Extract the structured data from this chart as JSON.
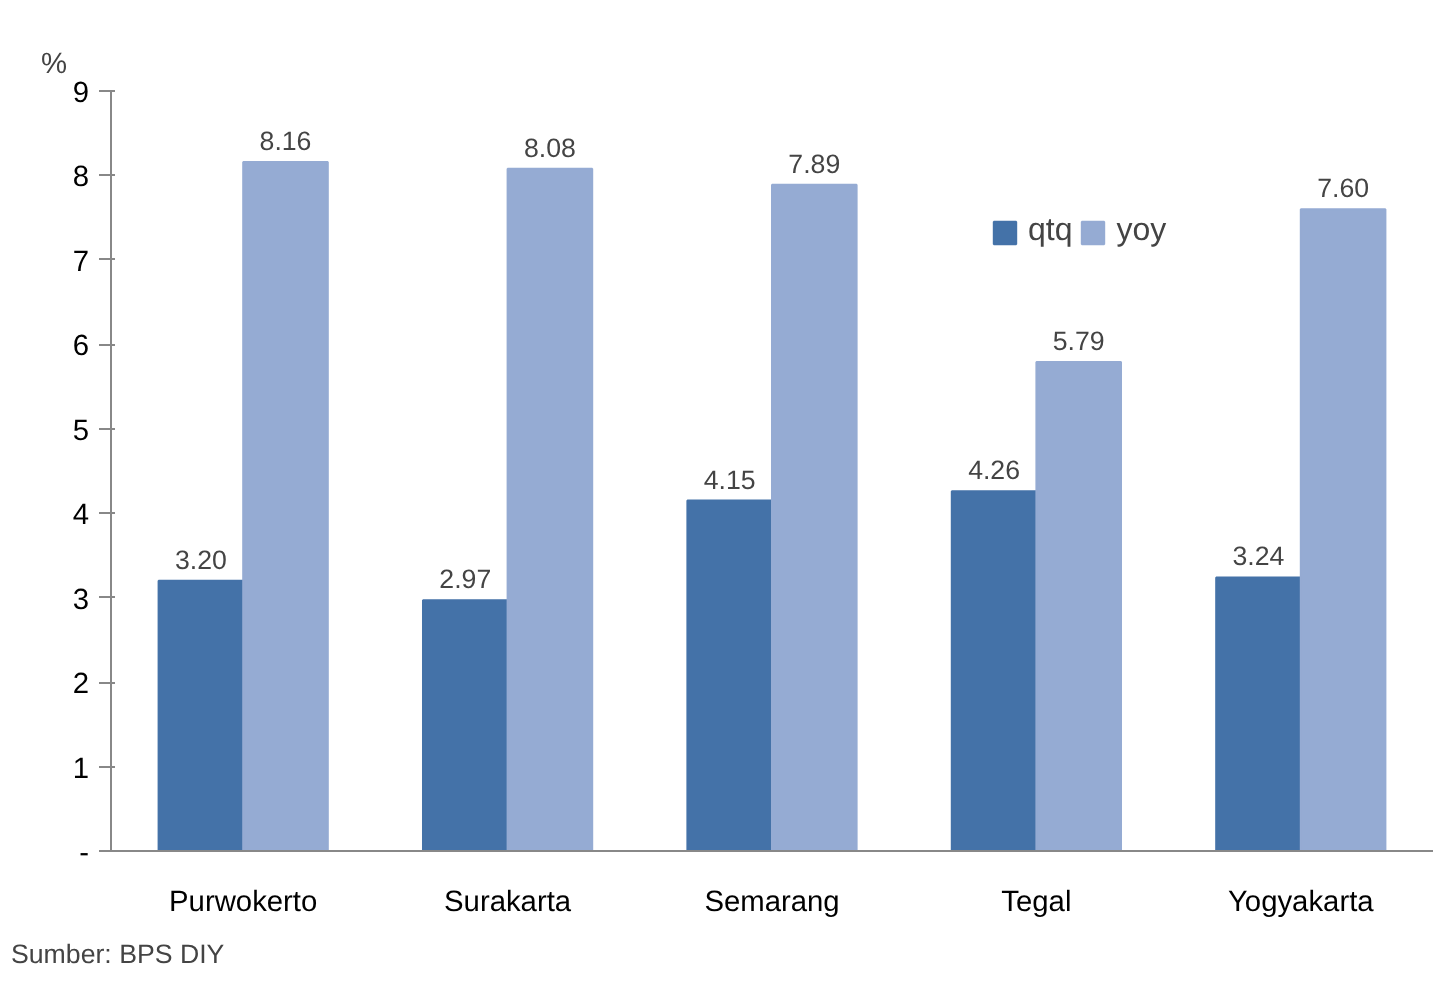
{
  "chart_data": {
    "type": "bar",
    "ylabel": "%",
    "categories": [
      "Purwokerto",
      "Surakarta",
      "Semarang",
      "Tegal",
      "Yogyakarta"
    ],
    "series": [
      {
        "name": "qtq",
        "color": "#4472a8",
        "values": [
          3.2,
          2.97,
          4.15,
          4.26,
          3.24
        ],
        "value_labels": [
          "3.20",
          "2.97",
          "4.15",
          "4.26",
          "3.24"
        ]
      },
      {
        "name": "yoy",
        "color": "#95abd3",
        "values": [
          8.16,
          8.08,
          7.89,
          5.79,
          7.6
        ],
        "value_labels": [
          "8.16",
          "8.08",
          "7.89",
          "5.79",
          "7.60"
        ]
      }
    ],
    "ylim": [
      0,
      9
    ],
    "yticks": [
      {
        "value": 0,
        "label": "-"
      },
      1,
      2,
      3,
      4,
      5,
      6,
      7,
      8,
      9
    ],
    "grid": false,
    "legend": "top right",
    "annotations": [
      "Sumber: BPS DIY"
    ]
  }
}
